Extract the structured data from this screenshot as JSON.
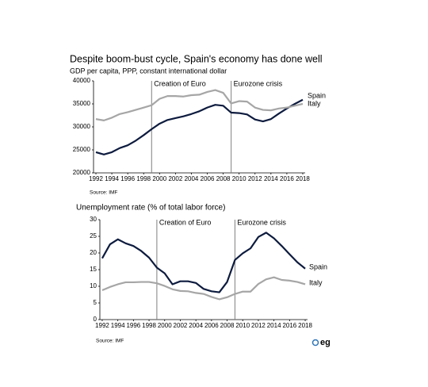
{
  "chart_data": [
    {
      "type": "line",
      "title": "Despite boom-bust cycle, Spain's economy has done well",
      "subtitle": "GDP per capita, PPP, constant international dollar",
      "x": [
        1992,
        1993,
        1994,
        1995,
        1996,
        1997,
        1998,
        1999,
        2000,
        2001,
        2002,
        2003,
        2004,
        2005,
        2006,
        2007,
        2008,
        2009,
        2010,
        2011,
        2012,
        2013,
        2014,
        2015,
        2016,
        2017,
        2018
      ],
      "series": [
        {
          "name": "Spain",
          "color": "#0d1b3e",
          "values": [
            24500,
            24000,
            24500,
            25400,
            26000,
            27000,
            28200,
            29500,
            30700,
            31500,
            31900,
            32300,
            32800,
            33400,
            34200,
            34800,
            34600,
            33100,
            33000,
            32700,
            31600,
            31200,
            31700,
            32900,
            34000,
            35000,
            35900
          ]
        },
        {
          "name": "Italy",
          "color": "#a6a6a6",
          "values": [
            31700,
            31400,
            32000,
            32800,
            33200,
            33700,
            34200,
            34700,
            36100,
            36700,
            36700,
            36600,
            36900,
            37000,
            37600,
            38000,
            37400,
            35100,
            35600,
            35500,
            34200,
            33700,
            33600,
            34000,
            34200,
            34600,
            35000
          ]
        }
      ],
      "xlim": [
        1991.7,
        2018.3
      ],
      "xticks": [
        1992,
        1994,
        1996,
        1998,
        2000,
        2002,
        2004,
        2006,
        2008,
        2010,
        2012,
        2014,
        2016,
        2018
      ],
      "ylim": [
        20000,
        40000
      ],
      "yticks": [
        20000,
        25000,
        30000,
        35000,
        40000
      ],
      "annotations": [
        {
          "x": 1999,
          "label": "Creation of Euro"
        },
        {
          "x": 2009,
          "label": "Eurozone crisis"
        }
      ],
      "source": "Source: IMF"
    },
    {
      "type": "line",
      "title": "Unemployment rate (% of total labor force)",
      "x": [
        1992,
        1993,
        1994,
        1995,
        1996,
        1997,
        1998,
        1999,
        2000,
        2001,
        2002,
        2003,
        2004,
        2005,
        2006,
        2007,
        2008,
        2009,
        2010,
        2011,
        2012,
        2013,
        2014,
        2015,
        2016,
        2017,
        2018
      ],
      "series": [
        {
          "name": "Spain",
          "color": "#0d1b3e",
          "values": [
            18.4,
            22.6,
            24.1,
            22.9,
            22.1,
            20.6,
            18.6,
            15.6,
            13.9,
            10.6,
            11.5,
            11.5,
            11.0,
            9.2,
            8.5,
            8.2,
            11.3,
            17.9,
            19.9,
            21.4,
            24.8,
            26.1,
            24.4,
            22.1,
            19.6,
            17.2,
            15.3
          ]
        },
        {
          "name": "Italy",
          "color": "#a6a6a6",
          "values": [
            8.8,
            9.8,
            10.6,
            11.2,
            11.2,
            11.3,
            11.3,
            10.9,
            10.1,
            9.1,
            8.6,
            8.5,
            8.0,
            7.7,
            6.8,
            6.1,
            6.7,
            7.7,
            8.4,
            8.4,
            10.7,
            12.1,
            12.7,
            11.9,
            11.7,
            11.3,
            10.6
          ]
        }
      ],
      "xlim": [
        1991.7,
        2018.3
      ],
      "xticks": [
        1992,
        1994,
        1996,
        1998,
        2000,
        2002,
        2004,
        2006,
        2008,
        2010,
        2012,
        2014,
        2016,
        2018
      ],
      "ylim": [
        0,
        30
      ],
      "yticks": [
        0,
        5,
        10,
        15,
        20,
        25,
        30
      ],
      "annotations": [
        {
          "x": 1999,
          "label": "Creation of Euro"
        },
        {
          "x": 2009,
          "label": "Eurozone crisis"
        }
      ],
      "source": "Source: IMF"
    }
  ],
  "logo": "eg"
}
